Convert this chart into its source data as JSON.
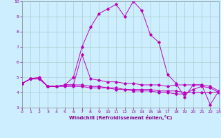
{
  "xlabel": "Windchill (Refroidissement éolien,°C)",
  "bg_color": "#cceeff",
  "grid_color": "#aacccc",
  "line_color": "#bb00bb",
  "tick_color": "#880088",
  "xlabel_color": "#880088",
  "xlim": [
    0,
    23
  ],
  "ylim": [
    3,
    10
  ],
  "xticks": [
    0,
    1,
    2,
    3,
    4,
    5,
    6,
    7,
    8,
    9,
    10,
    11,
    12,
    13,
    14,
    15,
    16,
    17,
    18,
    19,
    20,
    21,
    22,
    23
  ],
  "yticks": [
    3,
    4,
    5,
    6,
    7,
    8,
    9,
    10
  ],
  "series": [
    {
      "x": [
        0,
        1,
        2,
        3,
        4,
        5,
        6,
        7,
        8,
        9,
        10,
        11,
        12,
        13,
        14,
        15,
        16,
        17,
        18,
        19,
        20,
        21,
        22,
        23
      ],
      "y": [
        4.6,
        4.9,
        5.0,
        4.4,
        4.4,
        4.5,
        5.0,
        7.0,
        8.3,
        9.2,
        9.5,
        9.8,
        9.0,
        10.0,
        9.4,
        7.8,
        7.3,
        5.2,
        4.6,
        3.7,
        4.5,
        4.5,
        3.2,
        4.1
      ]
    },
    {
      "x": [
        0,
        1,
        2,
        3,
        4,
        5,
        6,
        7,
        8,
        9,
        10,
        11,
        12,
        13,
        14,
        15,
        16,
        17,
        18,
        19,
        20,
        21,
        22,
        23
      ],
      "y": [
        4.6,
        4.9,
        4.9,
        4.4,
        4.4,
        4.5,
        4.5,
        6.5,
        4.9,
        4.8,
        4.7,
        4.7,
        4.6,
        4.6,
        4.5,
        4.5,
        4.5,
        4.4,
        4.5,
        4.5,
        4.5,
        4.5,
        4.4,
        4.1
      ]
    },
    {
      "x": [
        0,
        1,
        2,
        3,
        4,
        5,
        6,
        7,
        8,
        9,
        10,
        11,
        12,
        13,
        14,
        15,
        16,
        17,
        18,
        19,
        20,
        21,
        22,
        23
      ],
      "y": [
        4.6,
        4.9,
        4.9,
        4.4,
        4.4,
        4.5,
        4.5,
        4.5,
        4.4,
        4.4,
        4.3,
        4.3,
        4.2,
        4.2,
        4.2,
        4.2,
        4.1,
        4.1,
        4.1,
        4.0,
        4.0,
        4.0,
        4.0,
        4.0
      ]
    },
    {
      "x": [
        0,
        1,
        2,
        3,
        4,
        5,
        6,
        7,
        8,
        9,
        10,
        11,
        12,
        13,
        14,
        15,
        16,
        17,
        18,
        19,
        20,
        21,
        22,
        23
      ],
      "y": [
        4.6,
        4.9,
        4.9,
        4.4,
        4.4,
        4.4,
        4.4,
        4.4,
        4.3,
        4.3,
        4.3,
        4.2,
        4.2,
        4.1,
        4.1,
        4.1,
        4.0,
        4.0,
        3.9,
        3.9,
        4.2,
        4.4,
        4.3,
        4.0
      ]
    }
  ]
}
